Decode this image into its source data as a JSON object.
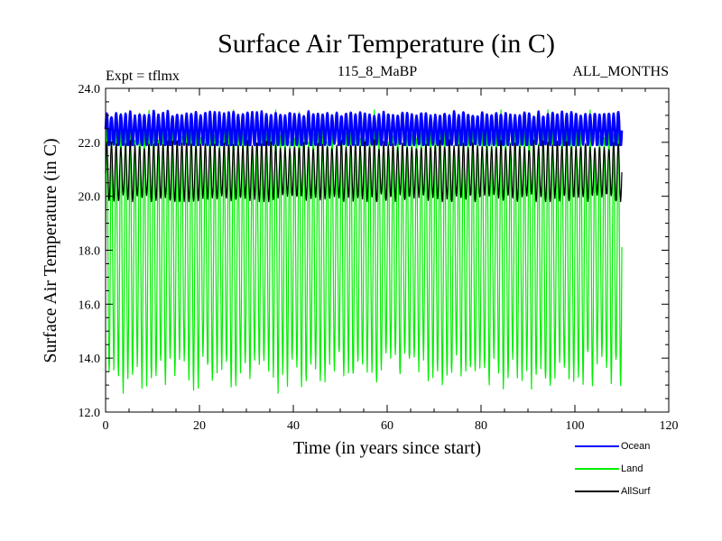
{
  "chart_data": {
    "type": "line",
    "title": "Surface Air Temperature (in C)",
    "subtitle_left": "Expt = tflmx",
    "subtitle_center": "115_8_MaBP",
    "subtitle_right": "ALL_MONTHS",
    "xlabel": "Time (in years since start)",
    "ylabel": "Surface Air Temperature (in C)",
    "xlim": [
      0,
      120
    ],
    "ylim": [
      12.0,
      24.0
    ],
    "x_ticks": [
      0,
      20,
      40,
      60,
      80,
      100,
      120
    ],
    "x_tick_labels": [
      "0",
      "20",
      "40",
      "60",
      "80",
      "100",
      "120"
    ],
    "y_ticks": [
      12.0,
      14.0,
      16.0,
      18.0,
      20.0,
      22.0,
      24.0
    ],
    "y_tick_labels": [
      "12.0",
      "14.0",
      "16.0",
      "18.0",
      "20.0",
      "22.0",
      "24.0"
    ],
    "grid": false,
    "legend_position": "below-right",
    "series": [
      {
        "name": "Ocean",
        "color": "#0000ff",
        "mean": 22.45,
        "amplitude": 0.6,
        "min": 21.9,
        "max": 23.3,
        "x_range": [
          0,
          110
        ],
        "period_years": 1
      },
      {
        "name": "Land",
        "color": "#00ee00",
        "mean": 18.0,
        "amplitude": 4.5,
        "min": 12.7,
        "max": 23.2,
        "x_range": [
          0,
          110
        ],
        "period_years": 1
      },
      {
        "name": "AllSurf",
        "color": "#000000",
        "mean": 20.9,
        "amplitude": 1.0,
        "min": 19.8,
        "max": 22.2,
        "x_range": [
          0,
          110
        ],
        "period_years": 1
      }
    ]
  }
}
